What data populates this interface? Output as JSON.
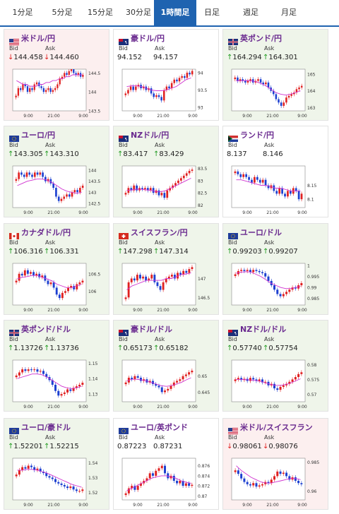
{
  "tabs": [
    {
      "label": "1分足",
      "active": false
    },
    {
      "label": "5分足",
      "active": false
    },
    {
      "label": "15分足",
      "active": false
    },
    {
      "label": "30分足",
      "active": false
    },
    {
      "label": "1時間足",
      "active": true
    },
    {
      "label": "日足",
      "active": false
    },
    {
      "label": "週足",
      "active": false
    },
    {
      "label": "月足",
      "active": false
    }
  ],
  "colors": {
    "accent": "#1f63b0",
    "up": "#1e9a1e",
    "down": "#e02020",
    "pair_text": "#6a2a8f",
    "up_bg": "#eff5ea",
    "down_bg": "#fcefef",
    "candle_up": "#e02020",
    "candle_down": "#1c3fd0",
    "ma": "#d033d0"
  },
  "labels": {
    "bid": "Bid",
    "ask": "Ask"
  },
  "cards": [
    {
      "pair": "米ドル/円",
      "flag": "us",
      "trend": "down",
      "bid": "144.458",
      "ask": "144.460",
      "chart_data": {
        "type": "candlestick",
        "ylim": [
          143.5,
          144.6
        ],
        "yticks": [
          "144.5",
          "144",
          "143.5"
        ],
        "xticks": [
          "9:00",
          "21:00",
          "9:00"
        ],
        "closes": [
          143.9,
          144.1,
          144.05,
          144.2,
          144.15,
          144.0,
          144.1,
          144.05,
          144.2,
          144.25,
          144.15,
          144.1,
          144.0,
          144.05,
          144.1,
          144.0,
          144.05,
          144.1,
          144.2,
          144.35,
          144.4,
          144.5,
          144.45,
          144.55,
          144.6,
          144.5,
          144.45,
          144.5,
          144.4,
          144.45
        ],
        "ma": [
          144.3,
          144.25,
          144.2,
          144.2,
          144.15,
          144.15,
          144.15,
          144.2,
          144.2,
          144.25,
          144.25,
          144.3,
          144.3,
          144.35,
          144.35,
          144.4,
          144.4,
          144.45,
          144.45,
          144.45,
          144.45
        ]
      }
    },
    {
      "pair": "豪ドル/円",
      "flag": "au",
      "trend": "neutral",
      "bid": "94.152",
      "ask": "94.157",
      "chart_data": {
        "type": "candlestick",
        "ylim": [
          92.9,
          94.1
        ],
        "yticks": [
          "94",
          "93.5",
          "93"
        ],
        "xticks": [
          "9:00",
          "21:00",
          "9:00"
        ],
        "closes": [
          93.4,
          93.5,
          93.6,
          93.5,
          93.6,
          93.65,
          93.55,
          93.6,
          93.5,
          93.55,
          93.4,
          93.3,
          93.35,
          93.3,
          93.2,
          93.5,
          93.6,
          93.55,
          93.7,
          93.8,
          93.75,
          93.85,
          93.9,
          93.85,
          94.0,
          93.95,
          94.05
        ],
        "ma": [
          93.6,
          93.62,
          93.62,
          93.6,
          93.55,
          93.5,
          93.48,
          93.48,
          93.5,
          93.55,
          93.6,
          93.7,
          93.8,
          93.85
        ]
      }
    },
    {
      "pair": "英ポンド/円",
      "flag": "gb",
      "trend": "up",
      "bid": "164.294",
      "ask": "164.301",
      "chart_data": {
        "type": "candlestick",
        "ylim": [
          162.8,
          165.3
        ],
        "yticks": [
          "165",
          "164",
          "163"
        ],
        "xticks": [
          "9:00",
          "21:00",
          "9:00"
        ],
        "closes": [
          164.8,
          164.6,
          164.7,
          164.6,
          164.5,
          164.6,
          164.7,
          164.5,
          164.6,
          164.7,
          164.5,
          164.4,
          164.5,
          164.2,
          164.0,
          163.8,
          163.5,
          163.3,
          163.1,
          163.3,
          163.6,
          163.7,
          163.8,
          163.9,
          164.1,
          164.2,
          164.3
        ],
        "ma": [
          164.6,
          164.6,
          164.62,
          164.6,
          164.55,
          164.45,
          164.3,
          164.1,
          163.9,
          163.8,
          163.75,
          163.8,
          163.9,
          164.0
        ]
      }
    },
    {
      "pair": "ユーロ/円",
      "flag": "eu",
      "trend": "up",
      "bid": "143.305",
      "ask": "143.310",
      "chart_data": {
        "type": "candlestick",
        "ylim": [
          142.3,
          144.2
        ],
        "yticks": [
          "144",
          "143.5",
          "143",
          "142.5"
        ],
        "xticks": [
          "9:00",
          "21:00",
          "9:00"
        ],
        "closes": [
          143.6,
          143.9,
          143.8,
          143.7,
          143.9,
          143.8,
          143.7,
          143.9,
          143.8,
          143.9,
          143.7,
          143.5,
          143.6,
          143.4,
          143.2,
          142.8,
          142.6,
          142.7,
          142.8,
          142.9,
          142.8,
          143.0,
          143.1,
          143.0,
          143.2,
          143.3
        ],
        "ma": [
          143.3,
          143.4,
          143.5,
          143.55,
          143.6,
          143.6,
          143.55,
          143.45,
          143.3,
          143.15,
          143.05,
          143.0,
          142.95,
          143.0
        ]
      }
    },
    {
      "pair": "NZドル/円",
      "flag": "nz",
      "trend": "up",
      "bid": "83.417",
      "ask": "83.429",
      "chart_data": {
        "type": "candlestick",
        "ylim": [
          81.9,
          83.6
        ],
        "yticks": [
          "83.5",
          "83",
          "82.5",
          "82"
        ],
        "xticks": [
          "9:00",
          "21:00",
          "9:00"
        ],
        "closes": [
          82.5,
          82.7,
          82.6,
          82.8,
          82.6,
          82.7,
          82.65,
          82.7,
          82.6,
          82.7,
          82.5,
          82.6,
          82.4,
          82.5,
          82.3,
          82.6,
          82.7,
          82.8,
          82.9,
          83.0,
          83.1,
          83.2,
          83.3,
          83.4,
          83.45
        ],
        "ma": [
          82.6,
          82.62,
          82.65,
          82.65,
          82.62,
          82.6,
          82.55,
          82.55,
          82.6,
          82.7,
          82.8,
          82.9,
          83.0,
          83.1
        ]
      }
    },
    {
      "pair": "ランド/円",
      "flag": "za",
      "trend": "neutral",
      "bid": "8.137",
      "ask": "8.146",
      "chart_data": {
        "type": "candlestick",
        "ylim": [
          8.07,
          8.22
        ],
        "yticks": [
          "8.15",
          "8.1"
        ],
        "xticks": [
          "9:00",
          "21:00",
          "9:00"
        ],
        "closes": [
          8.2,
          8.19,
          8.18,
          8.19,
          8.18,
          8.17,
          8.16,
          8.18,
          8.17,
          8.16,
          8.17,
          8.15,
          8.14,
          8.15,
          8.13,
          8.12,
          8.14,
          8.12,
          8.11,
          8.13,
          8.12,
          8.14,
          8.13,
          8.1,
          8.12
        ],
        "ma": [
          8.17,
          8.17,
          8.165,
          8.16,
          8.155,
          8.15,
          8.15,
          8.145,
          8.14,
          8.14,
          8.135,
          8.13,
          8.13,
          8.13
        ]
      }
    },
    {
      "pair": "カナダドル/円",
      "flag": "ca",
      "trend": "up",
      "bid": "106.316",
      "ask": "106.331",
      "chart_data": {
        "type": "candlestick",
        "ylim": [
          105.6,
          106.8
        ],
        "yticks": [
          "106.5",
          "106"
        ],
        "xticks": [
          "9:00",
          "21:00",
          "9:00"
        ],
        "closes": [
          106.3,
          106.5,
          106.45,
          106.6,
          106.5,
          106.55,
          106.45,
          106.5,
          106.4,
          106.45,
          106.3,
          106.2,
          106.25,
          106.1,
          105.9,
          105.8,
          105.95,
          106.0,
          106.1,
          106.15,
          106.05,
          106.2,
          106.25,
          106.3
        ],
        "ma": [
          106.35,
          106.4,
          106.42,
          106.45,
          106.45,
          106.4,
          106.35,
          106.3,
          106.2,
          106.15,
          106.1,
          106.1,
          106.15,
          106.2
        ]
      }
    },
    {
      "pair": "スイスフラン/円",
      "flag": "ch",
      "trend": "up",
      "bid": "147.298",
      "ask": "147.314",
      "chart_data": {
        "type": "candlestick",
        "ylim": [
          146.3,
          147.4
        ],
        "yticks": [
          "147",
          "146.5"
        ],
        "xticks": [
          "9:00",
          "21:00",
          "9:00"
        ],
        "closes": [
          146.5,
          146.9,
          147.0,
          146.95,
          147.1,
          147.0,
          147.05,
          146.95,
          147.0,
          147.1,
          146.9,
          146.8,
          146.7,
          146.9,
          147.0,
          147.05,
          147.1,
          147.0,
          147.15,
          147.1,
          147.2,
          147.15,
          147.25,
          147.3
        ],
        "ma": [
          146.7,
          146.8,
          146.85,
          146.9,
          146.95,
          146.95,
          146.95,
          146.95,
          147.0,
          147.0,
          147.05,
          147.1,
          147.12,
          147.15
        ]
      }
    },
    {
      "pair": "ユーロ/ドル",
      "flag": "eu_us",
      "trend": "up",
      "bid": "0.99203",
      "ask": "0.99207",
      "chart_data": {
        "type": "candlestick",
        "ylim": [
          0.982,
          1.001
        ],
        "yticks": [
          "1",
          "0.995",
          "0.99",
          "0.985"
        ],
        "xticks": [
          "9:00",
          "21:00",
          "9:00"
        ],
        "closes": [
          0.996,
          0.9975,
          0.998,
          0.9975,
          0.998,
          0.997,
          0.998,
          0.9975,
          0.997,
          0.9965,
          0.995,
          0.993,
          0.991,
          0.989,
          0.987,
          0.986,
          0.987,
          0.988,
          0.989,
          0.99,
          0.9895,
          0.991,
          0.992
        ],
        "ma": [
          0.9965,
          0.997,
          0.9972,
          0.997,
          0.996,
          0.995,
          0.9935,
          0.992,
          0.991,
          0.99,
          0.9895,
          0.9895,
          0.99,
          0.9905
        ]
      }
    },
    {
      "pair": "英ポンド/ドル",
      "flag": "gb_us",
      "trend": "up",
      "bid": "1.13726",
      "ask": "1.13736",
      "chart_data": {
        "type": "candlestick",
        "ylim": [
          1.125,
          1.152
        ],
        "yticks": [
          "1.15",
          "1.14",
          "1.13"
        ],
        "xticks": [
          "9:00",
          "21:00",
          "9:00"
        ],
        "closes": [
          1.142,
          1.144,
          1.146,
          1.145,
          1.146,
          1.1455,
          1.146,
          1.1445,
          1.145,
          1.143,
          1.141,
          1.139,
          1.136,
          1.132,
          1.129,
          1.13,
          1.131,
          1.133,
          1.132,
          1.134,
          1.135,
          1.136,
          1.1373
        ],
        "ma": [
          1.14,
          1.141,
          1.142,
          1.143,
          1.143,
          1.1425,
          1.141,
          1.139,
          1.137,
          1.135,
          1.134,
          1.1335,
          1.134,
          1.135
        ]
      }
    },
    {
      "pair": "豪ドル/ドル",
      "flag": "au_us",
      "trend": "up",
      "bid": "0.65173",
      "ask": "0.65182",
      "chart_data": {
        "type": "candlestick",
        "ylim": [
          0.642,
          0.655
        ],
        "yticks": [
          "0.65",
          "0.645"
        ],
        "xticks": [
          "9:00",
          "21:00",
          "9:00"
        ],
        "closes": [
          0.648,
          0.6495,
          0.649,
          0.65,
          0.6495,
          0.6485,
          0.649,
          0.648,
          0.6485,
          0.6475,
          0.647,
          0.6465,
          0.645,
          0.6455,
          0.646,
          0.647,
          0.648,
          0.6485,
          0.649,
          0.65,
          0.6505,
          0.6512,
          0.6517
        ],
        "ma": [
          0.6485,
          0.649,
          0.649,
          0.6488,
          0.6485,
          0.648,
          0.6475,
          0.647,
          0.6468,
          0.647,
          0.6475,
          0.648,
          0.6488,
          0.6495
        ]
      }
    },
    {
      "pair": "NZドル/ドル",
      "flag": "nz_us",
      "trend": "up",
      "bid": "0.57740",
      "ask": "0.57754",
      "chart_data": {
        "type": "candlestick",
        "ylim": [
          0.5675,
          0.5815
        ],
        "yticks": [
          "0.58",
          "0.575",
          "0.57"
        ],
        "xticks": [
          "9:00",
          "21:00",
          "9:00"
        ],
        "closes": [
          0.575,
          0.5755,
          0.5748,
          0.5752,
          0.5745,
          0.5755,
          0.575,
          0.5745,
          0.575,
          0.574,
          0.5742,
          0.573,
          0.5735,
          0.572,
          0.5715,
          0.5725,
          0.573,
          0.5735,
          0.5742,
          0.575,
          0.5758,
          0.5768,
          0.5774
        ],
        "ma": [
          0.575,
          0.575,
          0.5749,
          0.5748,
          0.5746,
          0.5743,
          0.5738,
          0.5733,
          0.573,
          0.573,
          0.5733,
          0.5738,
          0.5745,
          0.5752
        ]
      }
    },
    {
      "pair": "ユーロ/豪ドル",
      "flag": "eu_au",
      "trend": "up",
      "bid": "1.52201",
      "ask": "1.52215",
      "chart_data": {
        "type": "candlestick",
        "ylim": [
          1.515,
          1.543
        ],
        "yticks": [
          "1.54",
          "1.53",
          "1.52"
        ],
        "xticks": [
          "9:00",
          "21:00",
          "9:00"
        ],
        "closes": [
          1.532,
          1.535,
          1.537,
          1.536,
          1.538,
          1.537,
          1.535,
          1.536,
          1.534,
          1.533,
          1.531,
          1.53,
          1.529,
          1.527,
          1.526,
          1.525,
          1.524,
          1.523,
          1.524,
          1.522,
          1.521,
          1.521,
          1.522
        ],
        "ma": [
          1.535,
          1.535,
          1.5355,
          1.5355,
          1.535,
          1.534,
          1.533,
          1.5315,
          1.53,
          1.5285,
          1.527,
          1.5255,
          1.5245,
          1.5235
        ]
      }
    },
    {
      "pair": "ユーロ/英ポンド",
      "flag": "eu_gb",
      "trend": "neutral",
      "bid": "0.87223",
      "ask": "0.87231",
      "chart_data": {
        "type": "candlestick",
        "ylim": [
          0.8692,
          0.8775
        ],
        "yticks": [
          "0.876",
          "0.874",
          "0.872",
          "0.87"
        ],
        "xticks": [
          "9:00",
          "21:00",
          "9:00"
        ],
        "closes": [
          0.8705,
          0.8715,
          0.872,
          0.8712,
          0.872,
          0.8725,
          0.873,
          0.8735,
          0.8745,
          0.874,
          0.875,
          0.8755,
          0.876,
          0.8745,
          0.8735,
          0.874,
          0.873,
          0.8725,
          0.873,
          0.872,
          0.8725,
          0.872,
          0.8722
        ],
        "ma": [
          0.871,
          0.8715,
          0.872,
          0.8725,
          0.873,
          0.8735,
          0.8738,
          0.874,
          0.874,
          0.8738,
          0.8735,
          0.873,
          0.8727,
          0.8725
        ]
      }
    },
    {
      "pair": "米ドル/スイスフラン",
      "flag": "us_ch",
      "trend": "down",
      "bid": "0.98061",
      "ask": "0.98076",
      "chart_data": {
        "type": "candlestick",
        "ylim": [
          0.9525,
          0.9885
        ],
        "yticks": [
          "0.985",
          "0.96"
        ],
        "xticks": [
          "9:00",
          "21:00",
          "9:00"
        ],
        "closes": [
          0.978,
          0.975,
          0.971,
          0.968,
          0.966,
          0.965,
          0.967,
          0.964,
          0.965,
          0.966,
          0.968,
          0.967,
          0.97,
          0.973,
          0.977,
          0.975,
          0.976,
          0.973,
          0.97,
          0.972,
          0.969,
          0.967,
          0.966
        ],
        "ma": [
          0.982,
          0.978,
          0.975,
          0.972,
          0.97,
          0.968,
          0.967,
          0.967,
          0.968,
          0.969,
          0.97,
          0.971,
          0.971,
          0.97
        ]
      }
    }
  ]
}
